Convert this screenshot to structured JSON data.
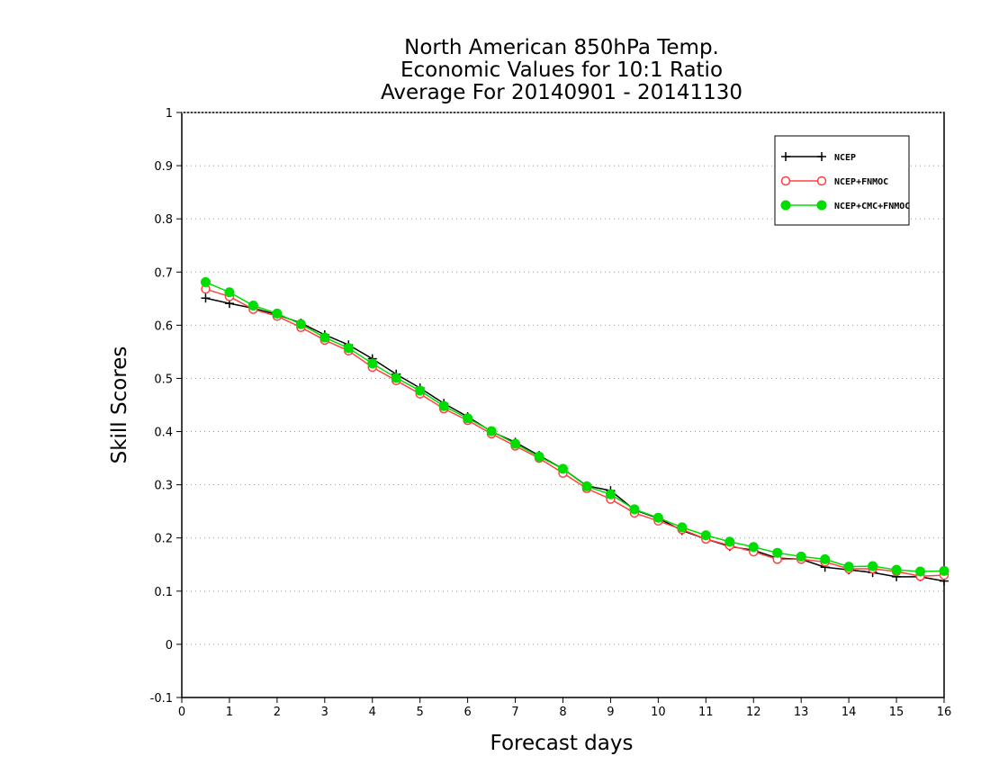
{
  "chart_data": {
    "type": "line",
    "title": [
      "North American 850hPa Temp.",
      "Economic Values for 10:1 Ratio",
      "Average For 20140901 - 20141130"
    ],
    "xlabel": "Forecast days",
    "ylabel": "Skill Scores",
    "xlim": [
      0,
      16
    ],
    "ylim": [
      -0.1,
      1
    ],
    "xticks": [
      "0",
      "1",
      "2",
      "3",
      "4",
      "5",
      "6",
      "7",
      "8",
      "9",
      "10",
      "11",
      "12",
      "13",
      "14",
      "15",
      "16"
    ],
    "yticks": [
      "-0.1",
      "0",
      "0.1",
      "0.2",
      "0.3",
      "0.4",
      "0.5",
      "0.6",
      "0.7",
      "0.8",
      "0.9",
      "1"
    ],
    "grid": "horizontal dotted",
    "legend_position": "top-right",
    "x": [
      0.5,
      1,
      1.5,
      2,
      2.5,
      3,
      3.5,
      4,
      4.5,
      5,
      5.5,
      6,
      6.5,
      7,
      7.5,
      8,
      8.5,
      9,
      9.5,
      10,
      10.5,
      11,
      11.5,
      12,
      12.5,
      13,
      13.5,
      14,
      14.5,
      15,
      15.5,
      16
    ],
    "series": [
      {
        "name": "NCEP",
        "color": "#000000",
        "marker": "plus",
        "values": [
          0.651,
          0.641,
          0.632,
          0.62,
          0.604,
          0.582,
          0.563,
          0.537,
          0.508,
          0.482,
          0.453,
          0.428,
          0.4,
          0.38,
          0.355,
          0.33,
          0.298,
          0.289,
          0.253,
          0.237,
          0.214,
          0.198,
          0.184,
          0.177,
          0.162,
          0.16,
          0.145,
          0.14,
          0.135,
          0.127,
          0.127,
          0.119
        ]
      },
      {
        "name": "NCEP+FNMOC",
        "color": "#ff4040",
        "marker": "open-circle",
        "values": [
          0.668,
          0.654,
          0.63,
          0.617,
          0.596,
          0.572,
          0.552,
          0.521,
          0.496,
          0.471,
          0.443,
          0.421,
          0.396,
          0.373,
          0.35,
          0.322,
          0.293,
          0.273,
          0.247,
          0.232,
          0.216,
          0.198,
          0.186,
          0.174,
          0.16,
          0.16,
          0.155,
          0.142,
          0.142,
          0.137,
          0.128,
          0.13
        ]
      },
      {
        "name": "NCEP+CMC+FNMOC",
        "color": "#00dd00",
        "marker": "filled-circle",
        "values": [
          0.681,
          0.662,
          0.637,
          0.622,
          0.602,
          0.577,
          0.557,
          0.528,
          0.501,
          0.477,
          0.448,
          0.425,
          0.401,
          0.377,
          0.353,
          0.33,
          0.297,
          0.282,
          0.254,
          0.238,
          0.22,
          0.205,
          0.193,
          0.183,
          0.172,
          0.165,
          0.16,
          0.146,
          0.147,
          0.14,
          0.137,
          0.138
        ]
      }
    ]
  }
}
